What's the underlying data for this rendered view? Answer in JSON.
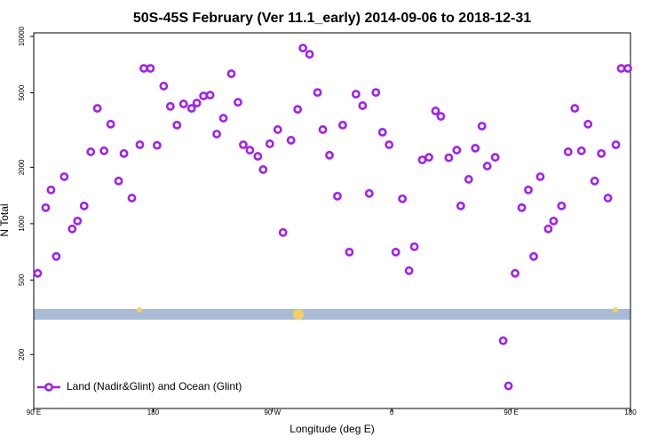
{
  "chart_data": {
    "type": "scatter",
    "title": "50S-45S February (Ver 11.1_early)   2014-09-06 to 2018-12-31",
    "x_label": "Longitude (deg E)",
    "y_label": "N Total",
    "log_y": true,
    "legend": "bottom-left",
    "xlim": [
      90,
      540
    ],
    "xticks": [
      {
        "value": 90,
        "label": "90 E"
      },
      180,
      {
        "value": 270,
        "label": "90 W"
      },
      {
        "value": 360,
        "label": "0"
      },
      {
        "value": 450,
        "label": "90 E"
      },
      {
        "value": 540,
        "label": "180"
      }
    ],
    "ylim": [
      103,
      10450
    ],
    "yticks": [
      200,
      500,
      1000,
      2000,
      5000,
      10000
    ],
    "series": [
      {
        "name": "Land (Nadir&Glint) and Ocean (Glint)",
        "color": "#a020f0",
        "x": [
          93,
          99,
          103,
          107,
          113,
          119,
          123,
          128,
          133,
          138,
          143,
          148,
          154,
          158,
          164,
          170,
          173,
          178,
          183,
          188,
          193,
          198,
          203,
          209,
          213,
          218,
          223,
          228,
          233,
          239,
          244,
          248,
          253,
          259,
          263,
          268,
          274,
          278,
          284,
          289,
          293,
          298,
          304,
          308,
          313,
          319,
          323,
          328,
          333,
          338,
          343,
          348,
          353,
          358,
          363,
          368,
          373,
          377,
          383,
          388,
          393,
          397,
          403,
          409,
          412,
          418,
          423,
          428,
          432,
          438,
          444,
          448,
          453,
          458,
          463,
          467,
          472,
          478,
          482,
          488,
          493,
          498,
          503,
          508,
          513,
          518,
          523,
          529,
          533,
          538
        ],
        "values": [
          543,
          1217,
          1514,
          668,
          1782,
          937,
          1033,
          1244,
          2420,
          4130,
          2450,
          3400,
          1690,
          2370,
          1370,
          2640,
          6750,
          6750,
          2620,
          5430,
          4230,
          3360,
          4360,
          4130,
          4410,
          4810,
          4860,
          3010,
          3660,
          6320,
          4450,
          2640,
          2470,
          2290,
          1945,
          2670,
          3180,
          897,
          2790,
          4080,
          8670,
          8030,
          5020,
          3180,
          2320,
          1403,
          3360,
          705,
          4920,
          4270,
          1450,
          5020,
          3080,
          2640,
          705,
          1358,
          561,
          753,
          2190,
          2260,
          4000,
          3740,
          2250,
          2470,
          1244,
          1725,
          2530,
          3320,
          2030,
          2260,
          237,
          136,
          543,
          1217,
          1514,
          668,
          1782,
          937,
          1033,
          1244,
          2420,
          4130,
          2450,
          3400,
          1690,
          2370,
          1370,
          2640,
          6750,
          6750
        ]
      }
    ]
  }
}
